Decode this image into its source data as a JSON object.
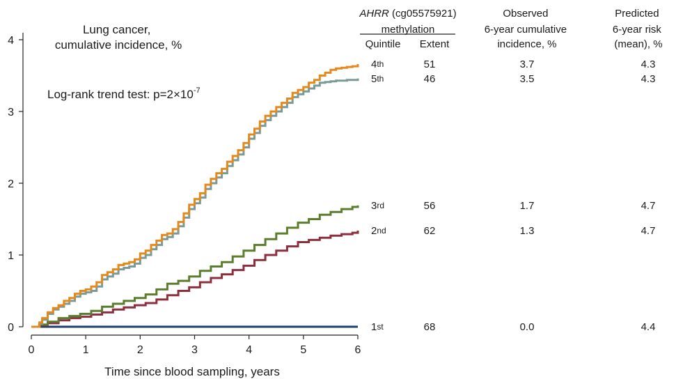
{
  "chart_data": {
    "type": "line",
    "title": "Lung cancer,\ncumulative incidence, %",
    "annotation": {
      "prefix": "Log-rank trend test: p=2×10",
      "exponent": "-7"
    },
    "xlabel": "Time since blood sampling, years",
    "ylabel": "",
    "xlim": [
      0,
      6
    ],
    "ylim": [
      0,
      4
    ],
    "x_ticks": [
      "0",
      "1",
      "2",
      "3",
      "4",
      "5",
      "6"
    ],
    "y_ticks": [
      "0",
      "1",
      "2",
      "3",
      "4"
    ],
    "step": true,
    "table": {
      "group_header": {
        "italic": "AHRR",
        "rest": " (cg05575921)",
        "line2": "methylation"
      },
      "col_quintile": "Quintile",
      "col_extent": "Extent",
      "col_observed": [
        "Observed",
        "6-year cumulative",
        "incidence, %"
      ],
      "col_predicted": [
        "Predicted",
        "6-year risk",
        "(mean), %"
      ]
    },
    "series": [
      {
        "name": "4th",
        "q_num": "4",
        "q_suffix": "th",
        "extent": "51",
        "observed": "3.7",
        "predicted": "4.3",
        "color": "#E3891E",
        "x": [
          0,
          0.15,
          0.2,
          0.3,
          0.4,
          0.5,
          0.6,
          0.7,
          0.8,
          0.9,
          1.0,
          1.1,
          1.2,
          1.3,
          1.4,
          1.5,
          1.6,
          1.7,
          1.8,
          1.9,
          2.0,
          2.1,
          2.2,
          2.3,
          2.4,
          2.5,
          2.6,
          2.7,
          2.8,
          2.9,
          3.0,
          3.1,
          3.2,
          3.3,
          3.4,
          3.5,
          3.6,
          3.7,
          3.8,
          3.9,
          4.0,
          4.1,
          4.2,
          4.3,
          4.4,
          4.5,
          4.6,
          4.7,
          4.8,
          4.9,
          5.0,
          5.1,
          5.2,
          5.3,
          5.4,
          5.5,
          5.6,
          5.7,
          5.8,
          5.9,
          6.0
        ],
        "y": [
          0,
          0.06,
          0.12,
          0.2,
          0.26,
          0.3,
          0.36,
          0.4,
          0.46,
          0.5,
          0.52,
          0.56,
          0.62,
          0.72,
          0.76,
          0.8,
          0.86,
          0.88,
          0.9,
          0.94,
          1.02,
          1.06,
          1.14,
          1.2,
          1.28,
          1.3,
          1.36,
          1.46,
          1.58,
          1.7,
          1.78,
          1.86,
          1.98,
          2.06,
          2.14,
          2.2,
          2.3,
          2.38,
          2.46,
          2.56,
          2.68,
          2.76,
          2.86,
          2.94,
          3.0,
          3.06,
          3.12,
          3.18,
          3.26,
          3.3,
          3.34,
          3.4,
          3.44,
          3.5,
          3.54,
          3.58,
          3.6,
          3.61,
          3.62,
          3.63,
          3.66
        ]
      },
      {
        "name": "5th",
        "q_num": "5",
        "q_suffix": "th",
        "extent": "46",
        "observed": "3.5",
        "predicted": "4.3",
        "color": "#7A9A98",
        "x": [
          0,
          0.15,
          0.2,
          0.3,
          0.4,
          0.5,
          0.6,
          0.7,
          0.8,
          0.9,
          1.0,
          1.1,
          1.2,
          1.3,
          1.4,
          1.5,
          1.6,
          1.7,
          1.8,
          1.9,
          2.0,
          2.1,
          2.2,
          2.3,
          2.4,
          2.5,
          2.6,
          2.7,
          2.8,
          2.9,
          3.0,
          3.1,
          3.2,
          3.3,
          3.4,
          3.5,
          3.6,
          3.7,
          3.8,
          3.9,
          4.0,
          4.1,
          4.2,
          4.3,
          4.4,
          4.5,
          4.6,
          4.7,
          4.8,
          4.9,
          5.0,
          5.1,
          5.2,
          5.3,
          5.4,
          5.5,
          5.6,
          5.7,
          5.8,
          5.9,
          6.0
        ],
        "y": [
          0,
          0.04,
          0.1,
          0.18,
          0.24,
          0.28,
          0.32,
          0.36,
          0.42,
          0.46,
          0.48,
          0.5,
          0.56,
          0.66,
          0.7,
          0.74,
          0.8,
          0.82,
          0.84,
          0.88,
          0.96,
          1.0,
          1.08,
          1.14,
          1.22,
          1.25,
          1.3,
          1.4,
          1.52,
          1.64,
          1.72,
          1.8,
          1.92,
          2.0,
          2.08,
          2.14,
          2.24,
          2.32,
          2.4,
          2.5,
          2.62,
          2.7,
          2.8,
          2.88,
          2.94,
          3.0,
          3.06,
          3.12,
          3.2,
          3.24,
          3.28,
          3.32,
          3.36,
          3.4,
          3.41,
          3.42,
          3.43,
          3.43,
          3.44,
          3.44,
          3.46
        ]
      },
      {
        "name": "3rd",
        "q_num": "3",
        "q_suffix": "rd",
        "extent": "56",
        "observed": "1.7",
        "predicted": "4.7",
        "color": "#5B7D2E",
        "x": [
          0,
          0.15,
          0.3,
          0.5,
          0.7,
          0.9,
          1.1,
          1.3,
          1.5,
          1.7,
          1.9,
          2.1,
          2.3,
          2.5,
          2.7,
          2.9,
          3.1,
          3.3,
          3.5,
          3.7,
          3.9,
          4.1,
          4.3,
          4.5,
          4.7,
          4.9,
          5.1,
          5.3,
          5.5,
          5.7,
          5.9,
          6.0
        ],
        "y": [
          0,
          0.03,
          0.07,
          0.12,
          0.15,
          0.18,
          0.22,
          0.28,
          0.32,
          0.36,
          0.4,
          0.45,
          0.52,
          0.6,
          0.64,
          0.7,
          0.78,
          0.84,
          0.9,
          0.98,
          1.06,
          1.14,
          1.22,
          1.3,
          1.38,
          1.45,
          1.5,
          1.56,
          1.6,
          1.64,
          1.67,
          1.69
        ]
      },
      {
        "name": "2nd",
        "q_num": "2",
        "q_suffix": "nd",
        "extent": "62",
        "observed": "1.3",
        "predicted": "4.7",
        "color": "#8C2F3C",
        "x": [
          0,
          0.15,
          0.3,
          0.5,
          0.7,
          0.9,
          1.1,
          1.3,
          1.5,
          1.7,
          1.9,
          2.1,
          2.3,
          2.5,
          2.7,
          2.9,
          3.1,
          3.3,
          3.5,
          3.7,
          3.9,
          4.1,
          4.3,
          4.5,
          4.7,
          4.9,
          5.1,
          5.3,
          5.5,
          5.7,
          5.9,
          6.0
        ],
        "y": [
          0,
          0.02,
          0.05,
          0.09,
          0.12,
          0.14,
          0.17,
          0.2,
          0.24,
          0.27,
          0.3,
          0.33,
          0.38,
          0.44,
          0.5,
          0.55,
          0.62,
          0.68,
          0.73,
          0.79,
          0.85,
          0.93,
          1.0,
          1.06,
          1.12,
          1.18,
          1.21,
          1.24,
          1.27,
          1.29,
          1.31,
          1.34
        ]
      },
      {
        "name": "1st",
        "q_num": "1",
        "q_suffix": "st",
        "extent": "68",
        "observed": "0.0",
        "predicted": "4.4",
        "color": "#1F3F6E",
        "x": [
          0,
          6.0
        ],
        "y": [
          0,
          0
        ]
      }
    ]
  }
}
